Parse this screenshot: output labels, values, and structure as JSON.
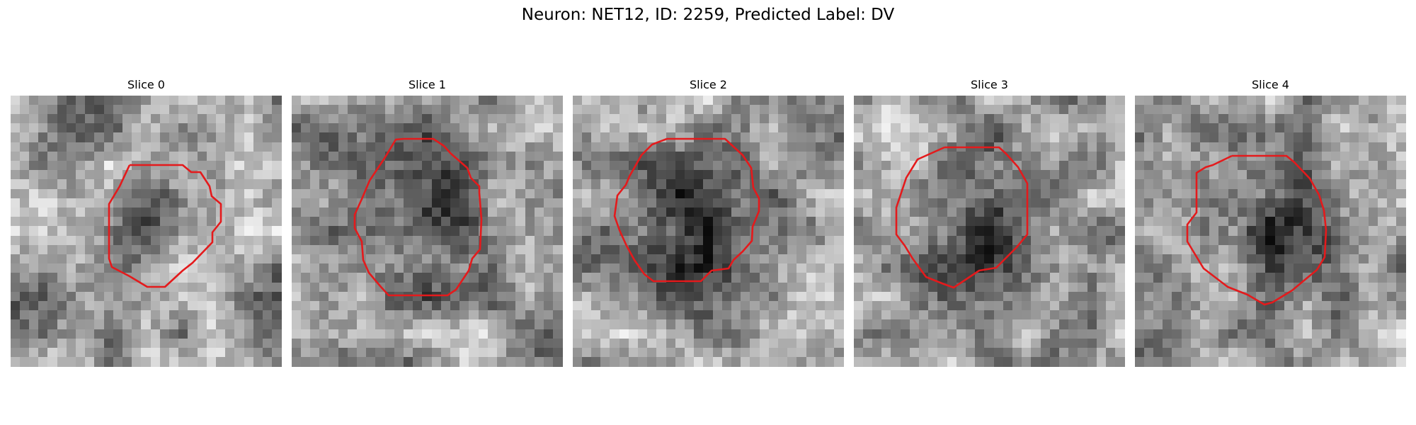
{
  "figure": {
    "title": "Neuron: NET12, ID: 2259, Predicted Label: DV",
    "contour_color": "#e41a1c",
    "panels": [
      {
        "title": "Slice 0",
        "seed": 11,
        "blob": [
          0.5,
          0.45,
          0.3,
          0.42
        ]
      },
      {
        "title": "Slice 1",
        "seed": 23,
        "blob": [
          0.5,
          0.45,
          0.55,
          0.78
        ]
      },
      {
        "title": "Slice 2",
        "seed": 37,
        "blob": [
          0.51,
          0.48,
          0.62,
          0.7
        ]
      },
      {
        "title": "Slice 3",
        "seed": 41,
        "blob": [
          0.5,
          0.43,
          0.58,
          0.8
        ]
      },
      {
        "title": "Slice 4",
        "seed": 53,
        "blob": [
          0.5,
          0.48,
          0.48,
          0.74
        ]
      }
    ]
  }
}
